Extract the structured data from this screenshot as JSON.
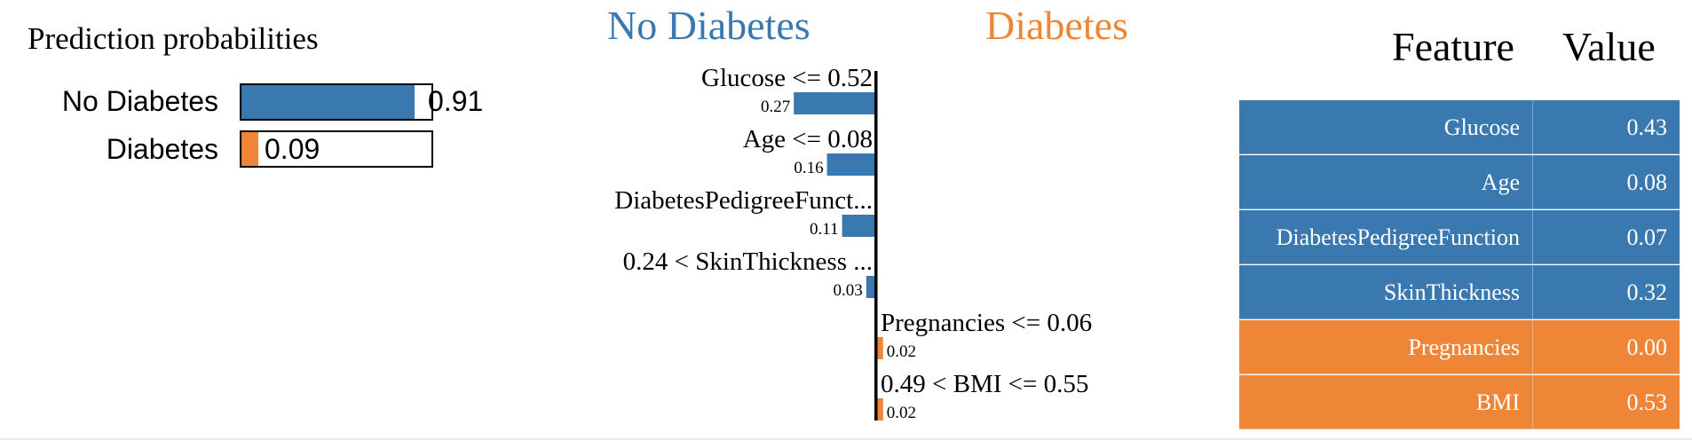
{
  "colors": {
    "no_diabetes": "#3a78b0",
    "diabetes": "#ef8637"
  },
  "prediction": {
    "title": "Prediction probabilities",
    "classes": [
      {
        "label": "No Diabetes",
        "value": 0.91,
        "value_text": "0.91",
        "color": "#3a78b0"
      },
      {
        "label": "Diabetes",
        "value": 0.09,
        "value_text": "0.09",
        "color": "#ef8637"
      }
    ]
  },
  "chart_data": {
    "type": "bar",
    "left_class": "No Diabetes",
    "right_class": "Diabetes",
    "bars": [
      {
        "label": "Glucose <= 0.52",
        "value": 0.27,
        "value_text": "0.27",
        "side": "left"
      },
      {
        "label": "Age <= 0.08",
        "value": 0.16,
        "value_text": "0.16",
        "side": "left"
      },
      {
        "label": "DiabetesPedigreeFunct...",
        "value": 0.11,
        "value_text": "0.11",
        "side": "left"
      },
      {
        "label": "0.24 < SkinThickness ...",
        "value": 0.03,
        "value_text": "0.03",
        "side": "left"
      },
      {
        "label": "Pregnancies <= 0.06",
        "value": 0.02,
        "value_text": "0.02",
        "side": "right"
      },
      {
        "label": "0.49 < BMI <= 0.55",
        "value": 0.02,
        "value_text": "0.02",
        "side": "right"
      }
    ]
  },
  "table": {
    "headers": {
      "feature": "Feature",
      "value": "Value"
    },
    "rows": [
      {
        "feature": "Glucose",
        "value": "0.43",
        "side": "left"
      },
      {
        "feature": "Age",
        "value": "0.08",
        "side": "left"
      },
      {
        "feature": "DiabetesPedigreeFunction",
        "value": "0.07",
        "side": "left"
      },
      {
        "feature": "SkinThickness",
        "value": "0.32",
        "side": "left"
      },
      {
        "feature": "Pregnancies",
        "value": "0.00",
        "side": "right"
      },
      {
        "feature": "BMI",
        "value": "0.53",
        "side": "right"
      }
    ]
  }
}
